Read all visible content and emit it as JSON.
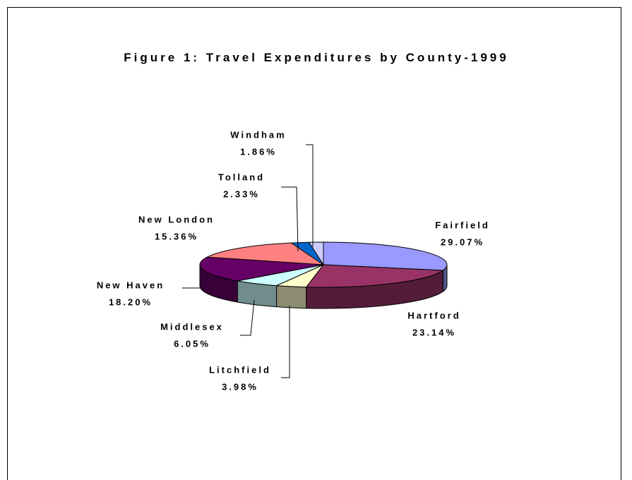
{
  "chart_data": {
    "type": "pie3d",
    "title": "Figure 1: Travel Expenditures by County-1999",
    "categories": [
      "Fairfield",
      "Hartford",
      "Litchfield",
      "Middlesex",
      "New Haven",
      "New London",
      "Tolland",
      "Windham"
    ],
    "values": [
      29.07,
      23.14,
      3.98,
      6.05,
      18.2,
      15.36,
      2.33,
      1.86
    ],
    "value_labels": [
      "29.07%",
      "23.14%",
      "3.98%",
      "6.05%",
      "18.20%",
      "15.36%",
      "2.33%",
      "1.86%"
    ],
    "colors": [
      "#9999ff",
      "#993366",
      "#ffffcc",
      "#ccffff",
      "#660066",
      "#ff8080",
      "#0066cc",
      "#ccccff"
    ]
  }
}
